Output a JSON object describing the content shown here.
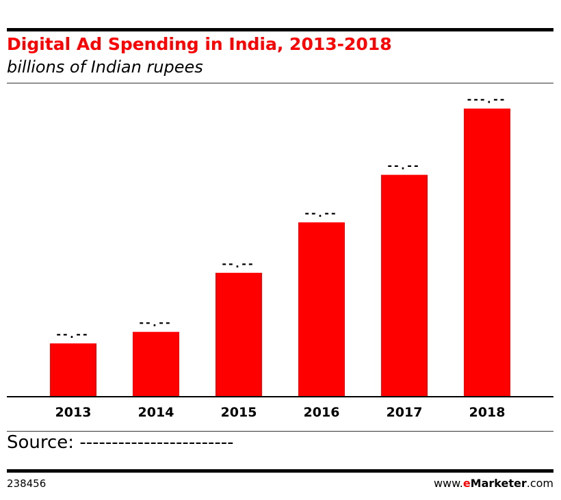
{
  "chart_data": {
    "type": "bar",
    "title": "Digital Ad Spending in India, 2013-2018",
    "subtitle": "billions of Indian rupees",
    "categories": [
      "2013",
      "2014",
      "2015",
      "2016",
      "2017",
      "2018"
    ],
    "values": [
      18.5,
      22.5,
      43.0,
      60.5,
      77.0,
      100.0
    ],
    "value_labels": [
      "--.--",
      "--.--",
      "--.--",
      "--.--",
      "--.--",
      "---.--"
    ],
    "ylim": [
      0,
      108
    ],
    "bar_color": "#ff0000",
    "grid": false,
    "legend": "none"
  },
  "footer": {
    "source": "Source: ------------------------",
    "chart_id": "238456",
    "brand_prefix": "www.",
    "brand_e": "e",
    "brand_name": "Marketer",
    "brand_suffix": ".com"
  }
}
